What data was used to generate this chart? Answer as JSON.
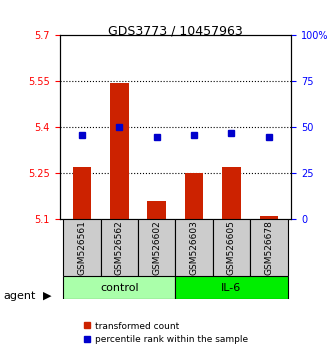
{
  "title": "GDS3773 / 10457963",
  "samples": [
    "GSM526561",
    "GSM526562",
    "GSM526602",
    "GSM526603",
    "GSM526605",
    "GSM526678"
  ],
  "red_values": [
    5.27,
    5.545,
    5.16,
    5.25,
    5.27,
    5.11
  ],
  "blue_values": [
    46,
    50,
    45,
    46,
    47,
    45
  ],
  "ylim_left": [
    5.1,
    5.7
  ],
  "ylim_right": [
    0,
    100
  ],
  "yticks_left": [
    5.1,
    5.25,
    5.4,
    5.55,
    5.7
  ],
  "ytick_labels_left": [
    "5.1",
    "5.25",
    "5.4",
    "5.55",
    "5.7"
  ],
  "yticks_right": [
    0,
    25,
    50,
    75,
    100
  ],
  "ytick_labels_right": [
    "0",
    "25",
    "50",
    "75",
    "100%"
  ],
  "hlines": [
    5.25,
    5.4,
    5.55
  ],
  "groups": [
    {
      "label": "control",
      "indices": [
        0,
        1,
        2
      ],
      "color": "#aaffaa"
    },
    {
      "label": "IL-6",
      "indices": [
        3,
        4,
        5
      ],
      "color": "#00dd00"
    }
  ],
  "bar_color": "#cc2200",
  "dot_color": "#0000cc",
  "bar_width": 0.5,
  "agent_label": "agent",
  "legend_red": "transformed count",
  "legend_blue": "percentile rank within the sample"
}
